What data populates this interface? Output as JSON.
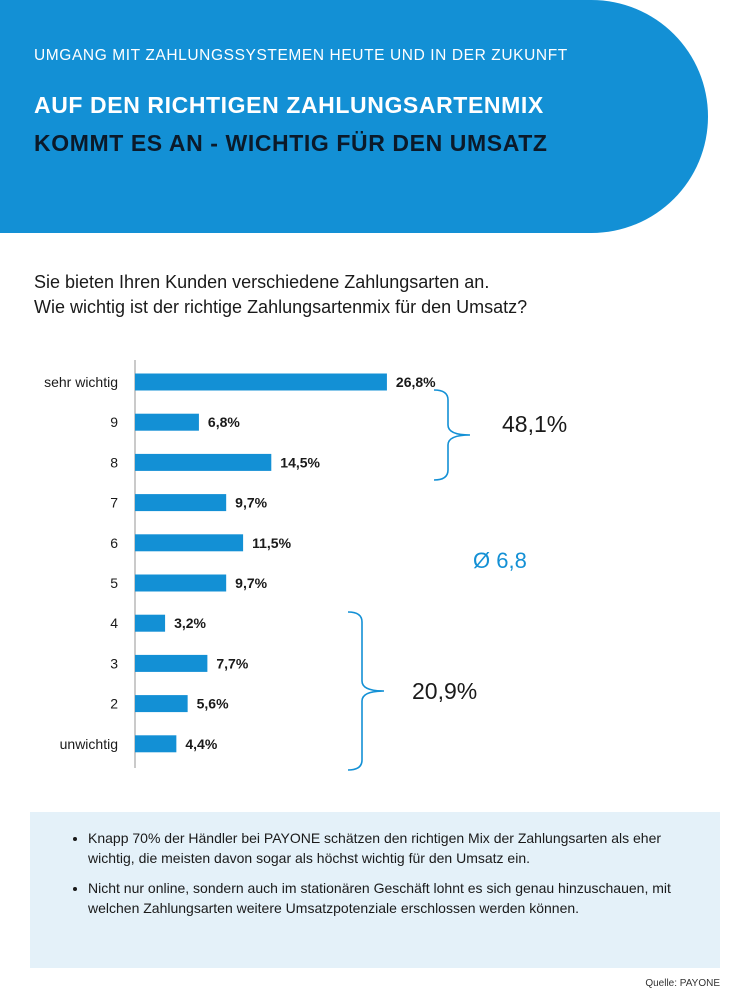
{
  "header": {
    "kicker": "UMGANG MIT ZAHLUNGSSYSTEMEN HEUTE UND IN DER ZUKUNFT",
    "title_line1": "AUF DEN RICHTIGEN ZAHLUNGSARTENMIX",
    "title_line2": "KOMMT ES AN - WICHTIG FÜR DEN UMSATZ"
  },
  "question": {
    "line1": "Sie bieten Ihren Kunden verschiedene Zahlungsarten an.",
    "line2": "Wie wichtig ist der richtige Zahlungsartenmix für den Umsatz?"
  },
  "chart_data": {
    "type": "bar",
    "orientation": "horizontal",
    "categories": [
      "sehr wichtig",
      "9",
      "8",
      "7",
      "6",
      "5",
      "4",
      "3",
      "2",
      "unwichtig"
    ],
    "values": [
      26.8,
      6.8,
      14.5,
      9.7,
      11.5,
      9.7,
      3.2,
      7.7,
      5.6,
      4.4
    ],
    "value_labels": [
      "26,8%",
      "6,8%",
      "14,5%",
      "9,7%",
      "11,5%",
      "9,7%",
      "3,2%",
      "7,7%",
      "5,6%",
      "4,4%"
    ],
    "bar_color": "#1390d5",
    "annotations": [
      {
        "text": "48,1%",
        "covers": [
          "sehr wichtig",
          "9",
          "8"
        ]
      },
      {
        "text": "Ø 6,8",
        "color": "#1390d5"
      },
      {
        "text": "20,9%",
        "covers": [
          "4",
          "3",
          "2",
          "unwichtig"
        ]
      }
    ]
  },
  "info": {
    "bullets": [
      "Knapp 70% der Händler bei PAYONE schätzen den richtigen Mix der Zahlungsarten als eher wichtig, die meisten davon sogar als höchst wichtig für den Umsatz ein.",
      "Nicht nur online, sondern auch im stationären Geschäft lohnt es sich genau hinzuschauen, mit welchen Zahlungsarten weitere Umsatzpotenziale erschlossen werden können."
    ]
  },
  "source": "Quelle: PAYONE",
  "colors": {
    "accent": "#1390d5",
    "info_bg": "#e4f1f9",
    "title_dark": "#0b1a2a"
  }
}
